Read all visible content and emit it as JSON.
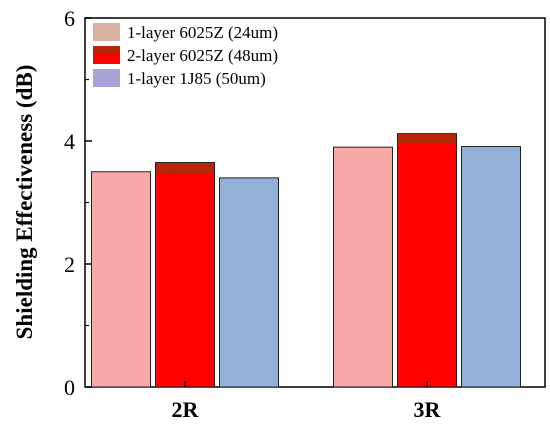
{
  "chart_data": {
    "type": "bar",
    "title": "",
    "xlabel": "",
    "ylabel": "Shielding Effectiveness (dB)",
    "categories": [
      "2R",
      "3R"
    ],
    "ylim": [
      0,
      6
    ],
    "yticks": [
      "0",
      "2",
      "4",
      "6"
    ],
    "grid": false,
    "legend_position": "top-left",
    "series": [
      {
        "name": "1-layer  6025Z (24um)",
        "values": [
          3.5,
          3.9
        ],
        "color": "#f9a8a8"
      },
      {
        "name": "2-layer 6025Z (48um)",
        "values": [
          3.65,
          4.12
        ],
        "color": "#ff0000",
        "cap_color": "#b5260a"
      },
      {
        "name": "1-layer  1J85  (50um)",
        "values": [
          3.4,
          3.91
        ],
        "color": "#93b1d8"
      }
    ]
  }
}
